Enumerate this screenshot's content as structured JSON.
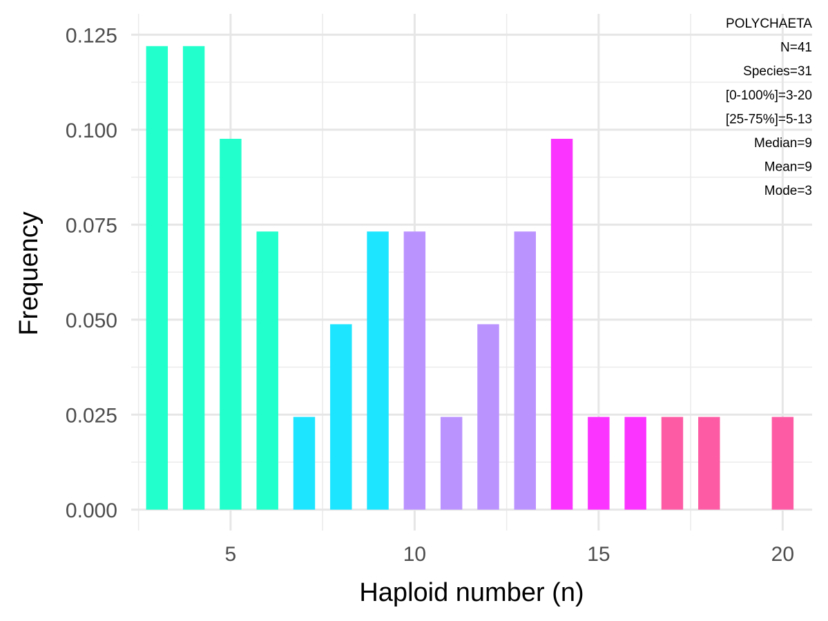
{
  "chart_data": {
    "type": "bar",
    "xlabel": "Haploid number (n)",
    "ylabel": "Frequency",
    "xlim": [
      2.3,
      20.8
    ],
    "ylim": [
      -0.0055,
      0.1305
    ],
    "x_ticks": [
      5,
      10,
      15,
      20
    ],
    "y_ticks": [
      0.0,
      0.025,
      0.05,
      0.075,
      0.1,
      0.125
    ],
    "x_tick_labels": [
      "5",
      "10",
      "15",
      "20"
    ],
    "y_tick_labels": [
      "0.000",
      "0.025",
      "0.050",
      "0.075",
      "0.100",
      "0.125"
    ],
    "bin_width": 0.59,
    "grid": true,
    "bars": [
      {
        "x": 3.0,
        "value": 0.122,
        "color": "#22ffcc"
      },
      {
        "x": 4.0,
        "value": 0.122,
        "color": "#22ffcc"
      },
      {
        "x": 5.0,
        "value": 0.0976,
        "color": "#22ffcc"
      },
      {
        "x": 6.0,
        "value": 0.0732,
        "color": "#22ffcc"
      },
      {
        "x": 7.0,
        "value": 0.0244,
        "color": "#1ee5ff"
      },
      {
        "x": 8.0,
        "value": 0.0488,
        "color": "#1ee5ff"
      },
      {
        "x": 9.0,
        "value": 0.0732,
        "color": "#1ee5ff"
      },
      {
        "x": 10.0,
        "value": 0.0732,
        "color": "#bb93ff"
      },
      {
        "x": 11.0,
        "value": 0.0244,
        "color": "#bb93ff"
      },
      {
        "x": 12.0,
        "value": 0.0488,
        "color": "#bb93ff"
      },
      {
        "x": 13.0,
        "value": 0.0732,
        "color": "#bb93ff"
      },
      {
        "x": 14.0,
        "value": 0.0976,
        "color": "#fb35ff"
      },
      {
        "x": 15.0,
        "value": 0.0244,
        "color": "#fb35ff"
      },
      {
        "x": 16.0,
        "value": 0.0244,
        "color": "#fb35ff"
      },
      {
        "x": 17.0,
        "value": 0.0244,
        "color": "#fd5ca5"
      },
      {
        "x": 18.0,
        "value": 0.0244,
        "color": "#fd5ca5"
      },
      {
        "x": 20.0,
        "value": 0.0244,
        "color": "#fd5ca5"
      }
    ],
    "annotations": [
      "POLYCHAETA",
      "N=41",
      "Species=31",
      "[0-100%]=3-20",
      "[25-75%]=5-13",
      "Median=9",
      "Mean=9",
      "Mode=3"
    ],
    "annotation_placement": "top-right"
  }
}
